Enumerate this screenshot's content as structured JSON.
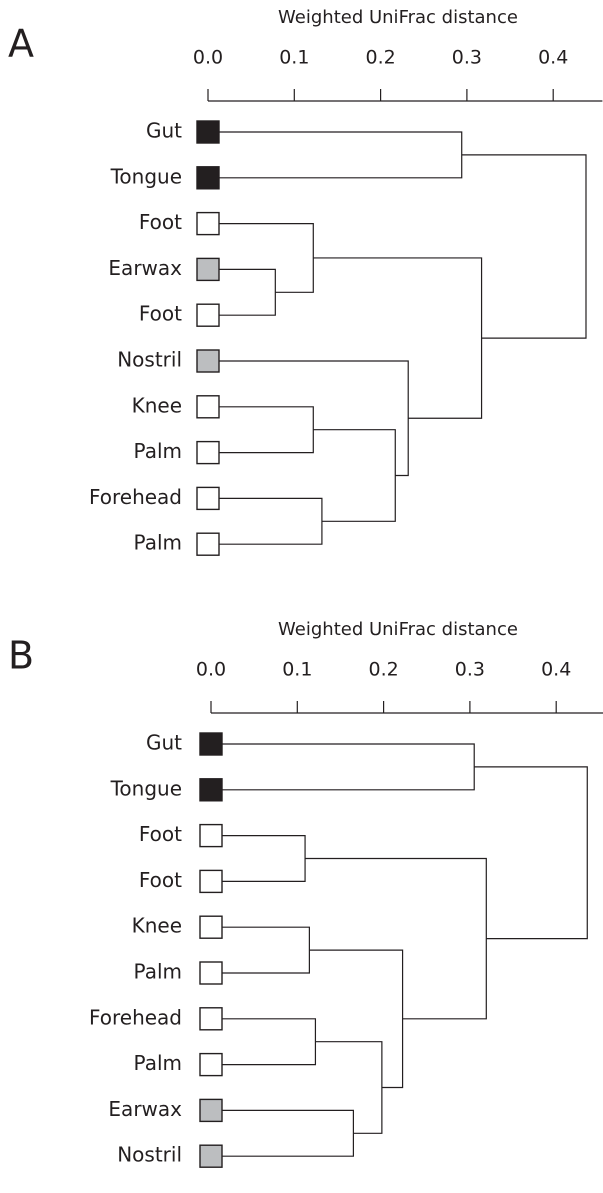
{
  "chart_data": [
    {
      "type": "dendrogram",
      "panel": "A",
      "title": "Weighted UniFrac distance",
      "xlim": [
        0,
        0.457
      ],
      "xticks": [
        {
          "value": 0,
          "label": "0.0"
        },
        0.1,
        0.2,
        0.3,
        0.4
      ],
      "leaves": [
        {
          "label": "Gut",
          "color": "#231f20"
        },
        {
          "label": "Tongue",
          "color": "#231f20"
        },
        {
          "label": "Foot",
          "color": "#ffffff"
        },
        {
          "label": "Earwax",
          "color": "#bcbec0"
        },
        {
          "label": "Foot",
          "color": "#ffffff"
        },
        {
          "label": "Nostril",
          "color": "#bcbec0"
        },
        {
          "label": "Knee",
          "color": "#ffffff"
        },
        {
          "label": "Palm",
          "color": "#ffffff"
        },
        {
          "label": "Forehead",
          "color": "#ffffff"
        },
        {
          "label": "Palm",
          "color": "#ffffff"
        }
      ],
      "merges": [
        {
          "children": [
            0,
            1
          ],
          "height": 0.294
        },
        {
          "children": [
            3,
            4
          ],
          "height": 0.078
        },
        {
          "children": [
            2,
            11
          ],
          "height": 0.122
        },
        {
          "children": [
            6,
            7
          ],
          "height": 0.122
        },
        {
          "children": [
            8,
            9
          ],
          "height": 0.132
        },
        {
          "children": [
            13,
            14
          ],
          "height": 0.217
        },
        {
          "children": [
            5,
            15
          ],
          "height": 0.232
        },
        {
          "children": [
            12,
            16
          ],
          "height": 0.317
        },
        {
          "children": [
            10,
            17
          ],
          "height": 0.438
        }
      ]
    },
    {
      "type": "dendrogram",
      "panel": "B",
      "title": "Weighted UniFrac distance",
      "xlim": [
        0,
        0.457
      ],
      "xticks": [
        {
          "value": 0,
          "label": "0.0"
        },
        0.1,
        0.2,
        0.3,
        0.4
      ],
      "leaves": [
        {
          "label": "Gut",
          "color": "#231f20"
        },
        {
          "label": "Tongue",
          "color": "#231f20"
        },
        {
          "label": "Foot",
          "color": "#ffffff"
        },
        {
          "label": "Foot",
          "color": "#ffffff"
        },
        {
          "label": "Knee",
          "color": "#ffffff"
        },
        {
          "label": "Palm",
          "color": "#ffffff"
        },
        {
          "label": "Forehead",
          "color": "#ffffff"
        },
        {
          "label": "Palm",
          "color": "#ffffff"
        },
        {
          "label": "Earwax",
          "color": "#bcbec0"
        },
        {
          "label": "Nostril",
          "color": "#bcbec0"
        }
      ],
      "merges": [
        {
          "children": [
            0,
            1
          ],
          "height": 0.305
        },
        {
          "children": [
            2,
            3
          ],
          "height": 0.109
        },
        {
          "children": [
            4,
            5
          ],
          "height": 0.114
        },
        {
          "children": [
            6,
            7
          ],
          "height": 0.121
        },
        {
          "children": [
            8,
            9
          ],
          "height": 0.165
        },
        {
          "children": [
            13,
            14
          ],
          "height": 0.198
        },
        {
          "children": [
            12,
            15
          ],
          "height": 0.222
        },
        {
          "children": [
            11,
            16
          ],
          "height": 0.319
        },
        {
          "children": [
            10,
            17
          ],
          "height": 0.436
        }
      ]
    }
  ]
}
